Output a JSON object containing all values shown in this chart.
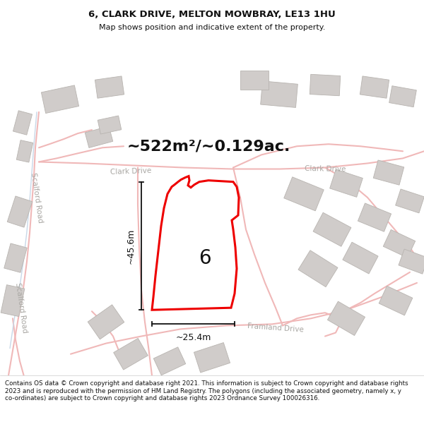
{
  "title": "6, CLARK DRIVE, MELTON MOWBRAY, LE13 1HU",
  "subtitle": "Map shows position and indicative extent of the property.",
  "area_label": "~522m²/~0.129ac.",
  "width_label": "~25.4m",
  "height_label": "~45.6m",
  "plot_number": "6",
  "map_bg": "#f8f7f5",
  "road_color": "#f0b8b8",
  "road_lw": 1.5,
  "building_color": "#d0ccca",
  "building_edge": "#b8b4b0",
  "plot_fill": "#ffffff",
  "plot_edge": "#ee0000",
  "plot_lw": 2.2,
  "road_label_color": "#aaa8a4",
  "dim_color": "#111111",
  "title_color": "#111111",
  "footer_color": "#111111",
  "footer_text": "Contains OS data © Crown copyright and database right 2021. This information is subject to Crown copyright and database rights 2023 and is reproduced with the permission of HM Land Registry. The polygons (including the associated geometry, namely x, y co-ordinates) are subject to Crown copyright and database rights 2023 Ordnance Survey 100026316.",
  "scalford_road_color": "#c8d8e8",
  "scalford_road_lw": 1.5
}
